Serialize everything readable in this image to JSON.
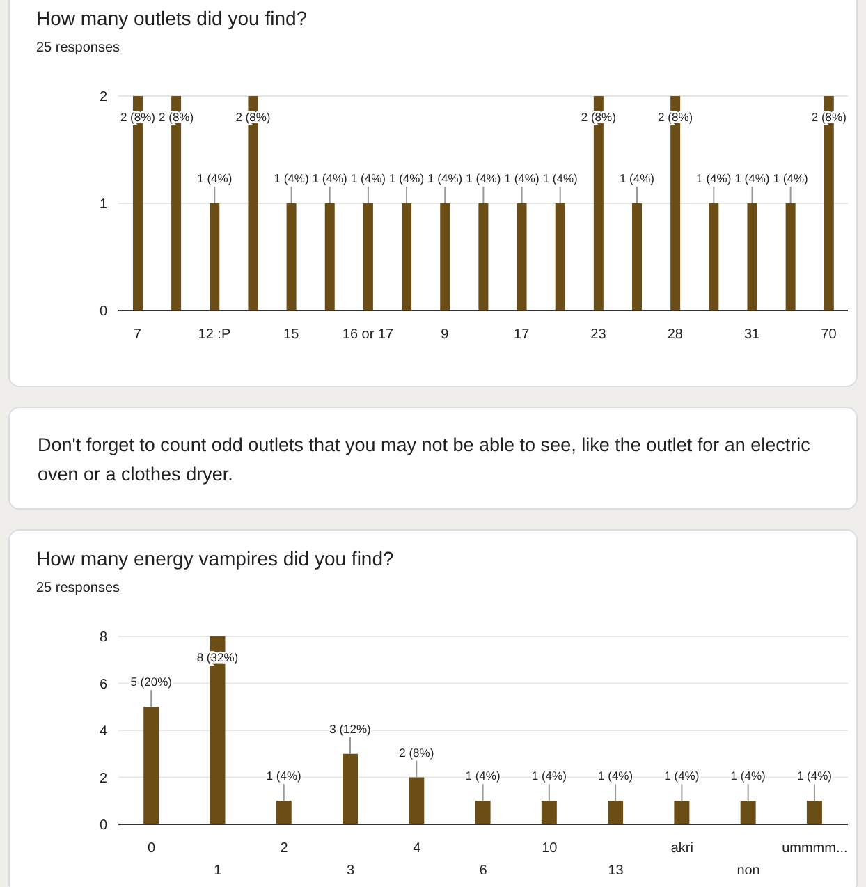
{
  "chart_data": [
    {
      "type": "bar",
      "title": "How many outlets did you find?",
      "subtitle": "25 responses",
      "categories": [
        "7",
        null,
        "12 :P",
        null,
        "15",
        null,
        "16 or 17",
        null,
        "9",
        null,
        "17",
        null,
        "23",
        null,
        "28",
        null,
        "31",
        null,
        "70"
      ],
      "values": [
        2,
        2,
        1,
        2,
        1,
        1,
        1,
        1,
        1,
        1,
        1,
        1,
        2,
        1,
        2,
        1,
        1,
        1,
        2
      ],
      "color": "#6b4e16",
      "ylim": [
        0,
        2
      ],
      "yticks": [
        0,
        1,
        2
      ],
      "grid": "y",
      "value_labels": [
        "2 (8%)",
        "2 (8%)",
        "1 (4%)",
        "2 (8%)",
        "1 (4%)",
        "1 (4%)",
        "1 (4%)",
        "1 (4%)",
        "1 (4%)",
        "1 (4%)",
        "1 (4%)",
        "1 (4%)",
        "2 (8%)",
        "1 (4%)",
        "2 (8%)",
        "1 (4%)",
        "1 (4%)",
        "1 (4%)",
        "2 (8%)"
      ]
    },
    {
      "type": "other",
      "annotations": [
        "Don't forget to count odd outlets that you may not be able to see, like the outlet for an electric oven or a clothes dryer."
      ]
    },
    {
      "type": "bar",
      "title": "How many energy vampires did you find?",
      "subtitle": "25 responses",
      "categories": [
        "0",
        "1",
        "2",
        "3",
        "4",
        "6",
        "10",
        "13",
        "akri",
        "non",
        "ummmm..."
      ],
      "values": [
        5,
        8,
        1,
        3,
        2,
        1,
        1,
        1,
        1,
        1,
        1
      ],
      "color": "#6b4e16",
      "ylim": [
        0,
        8
      ],
      "yticks": [
        0,
        2,
        4,
        6,
        8
      ],
      "grid": "y",
      "value_labels": [
        "5 (20%)",
        "8 (32%)",
        "1 (4%)",
        "3 (12%)",
        "2 (8%)",
        "1 (4%)",
        "1 (4%)",
        "1 (4%)",
        "1 (4%)",
        "1 (4%)",
        "1 (4%)"
      ]
    }
  ]
}
